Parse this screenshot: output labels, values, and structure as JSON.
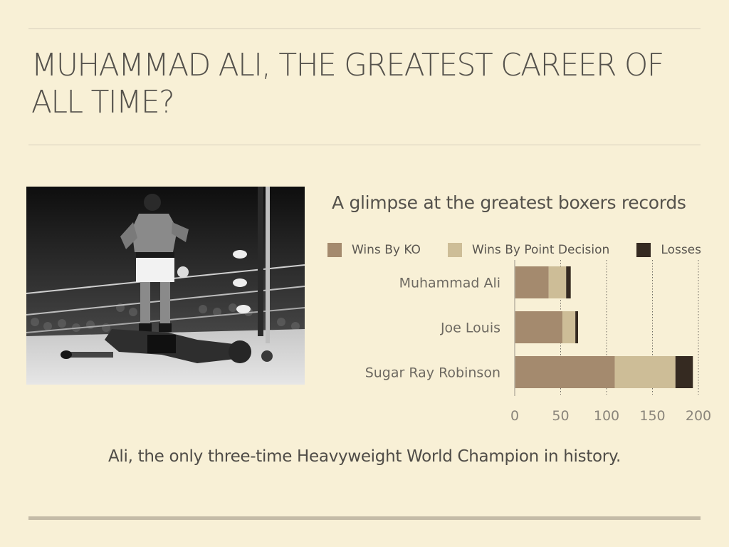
{
  "slide": {
    "title": "MUHAMMAD ALI, THE GREATEST CAREER OF ALL TIME?",
    "caption": "Ali, the only three-time Heavyweight World Champion in history."
  },
  "colors": {
    "background": "#f8f0d6",
    "wins_by_ko": "#a48a6e",
    "wins_by_point_decision": "#cdbd97",
    "losses": "#352a21"
  },
  "chart_data": {
    "type": "bar",
    "orientation": "horizontal",
    "stacked": true,
    "title": "A glimpse at the greatest boxers records",
    "categories": [
      "Muhammad Ali",
      "Joe Louis",
      "Sugar Ray Robinson"
    ],
    "series": [
      {
        "name": "Wins By KO",
        "values": [
          37,
          52,
          109
        ]
      },
      {
        "name": "Wins By Point Decision",
        "values": [
          19,
          14,
          66
        ]
      },
      {
        "name": "Losses",
        "values": [
          5,
          3,
          19
        ]
      }
    ],
    "xlim": [
      0,
      200
    ],
    "xticks": [
      "0",
      "50",
      "100",
      "150",
      "200"
    ],
    "grid": "vertical dotted",
    "legend": "top"
  }
}
